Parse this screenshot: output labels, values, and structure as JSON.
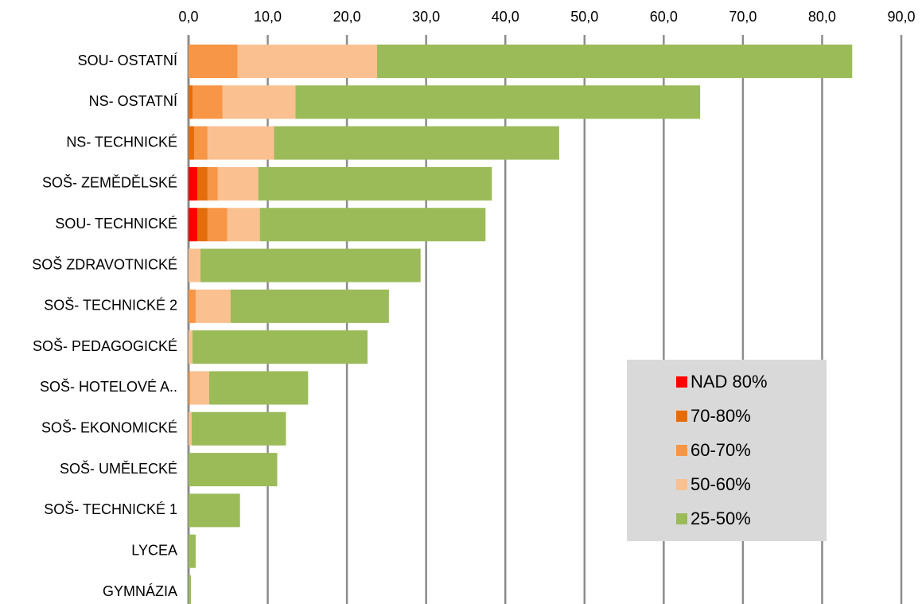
{
  "chart_data": {
    "type": "bar",
    "orientation": "horizontal",
    "stacked": true,
    "categories": [
      "SOU- OSTATNÍ",
      "NS- OSTATNÍ",
      "NS- TECHNICKÉ",
      "SOŠ- ZEMĚDĚLSKÉ",
      "SOU- TECHNICKÉ",
      "SOŠ ZDRAVOTNICKÉ",
      "SOŠ- TECHNICKÉ 2",
      "SOŠ- PEDAGOGICKÉ",
      "SOŠ- HOTELOVÉ A..",
      "SOŠ- EKONOMICKÉ",
      "SOŠ- UMĚLECKÉ",
      "SOŠ- TECHNICKÉ 1",
      "LYCEA",
      "GYMNÁZIA"
    ],
    "series": [
      {
        "name": "NAD 80%",
        "color": "#ff0000",
        "values": [
          0,
          0,
          0,
          1.1,
          1.1,
          0,
          0,
          0,
          0,
          0,
          0,
          0,
          0,
          0
        ]
      },
      {
        "name": "70-80%",
        "color": "#e46c0a",
        "values": [
          0,
          0.5,
          0.7,
          1.3,
          1.3,
          0,
          0,
          0,
          0,
          0,
          0,
          0,
          0,
          0
        ]
      },
      {
        "name": "60-70%",
        "color": "#f79646",
        "values": [
          6.2,
          3.8,
          1.7,
          1.3,
          2.5,
          0,
          0.9,
          0,
          0.2,
          0,
          0,
          0,
          0,
          0
        ]
      },
      {
        "name": "50-60%",
        "color": "#fac090",
        "values": [
          17.6,
          9.2,
          8.4,
          5.1,
          4.1,
          1.5,
          4.4,
          0.5,
          2.4,
          0.4,
          0,
          0,
          0,
          0
        ]
      },
      {
        "name": "25-50%",
        "color": "#9bbb59",
        "values": [
          60.0,
          51.1,
          36.0,
          29.5,
          28.5,
          27.8,
          20.0,
          22.1,
          12.5,
          11.9,
          11.2,
          6.5,
          0.9,
          0.3
        ]
      }
    ],
    "xlim": [
      0,
      90
    ],
    "xticks": [
      {
        "value": 0,
        "label": "0,0"
      },
      {
        "value": 10,
        "label": "10,0"
      },
      {
        "value": 20,
        "label": "20,0"
      },
      {
        "value": 30,
        "label": "30,0"
      },
      {
        "value": 40,
        "label": "40,0"
      },
      {
        "value": 50,
        "label": "50,0"
      },
      {
        "value": 60,
        "label": "60,0"
      },
      {
        "value": 70,
        "label": "70,0"
      },
      {
        "value": 80,
        "label": "80,0"
      },
      {
        "value": 90,
        "label": "90,0"
      }
    ],
    "grid": true,
    "legend": "lower right"
  }
}
